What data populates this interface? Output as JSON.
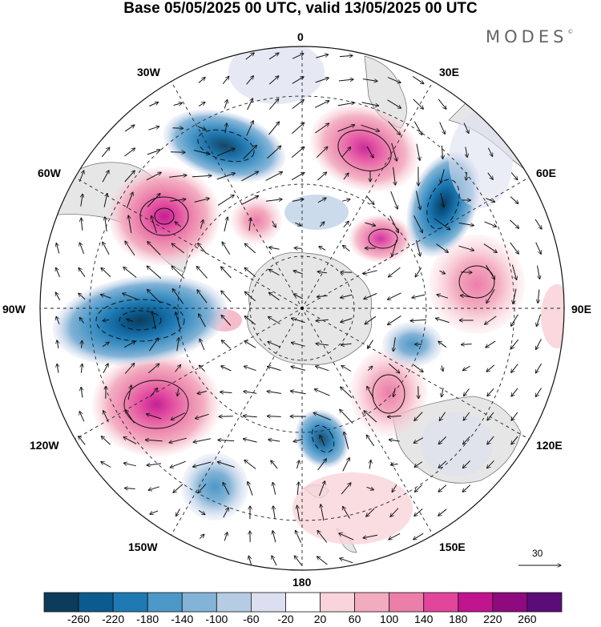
{
  "title": "Base 05/05/2025 00 UTC, valid 13/05/2025 00 UTC",
  "brand": "MODES",
  "brand_mark": "©",
  "longitude_labels": {
    "lon_0": "0",
    "lon_30e": "30E",
    "lon_60e": "60E",
    "lon_90e": "90E",
    "lon_120e": "120E",
    "lon_150e": "150E",
    "lon_180": "180",
    "lon_150w": "150W",
    "lon_120w": "120W",
    "lon_90w": "90W",
    "lon_60w": "60W",
    "lon_30w": "30W"
  },
  "vector_scale_label": "30",
  "colorbar": {
    "ticks": [
      "-260",
      "-220",
      "-180",
      "-140",
      "-100",
      "-60",
      "-20",
      "20",
      "60",
      "100",
      "140",
      "180",
      "220",
      "260"
    ],
    "colors": [
      "#0d3b5c",
      "#0c5b8f",
      "#1f7ab4",
      "#4c98c8",
      "#83b3d6",
      "#b5cce4",
      "#dcdff0",
      "#ffffff",
      "#f9d4da",
      "#f3acbf",
      "#ec7eaa",
      "#e2459c",
      "#c1148f",
      "#8f097f",
      "#5b0c78"
    ]
  },
  "colors": {
    "land": "#e6e6e6",
    "coast": "#7a7a7a",
    "grid": "#222222",
    "arrow": "#111111"
  }
}
